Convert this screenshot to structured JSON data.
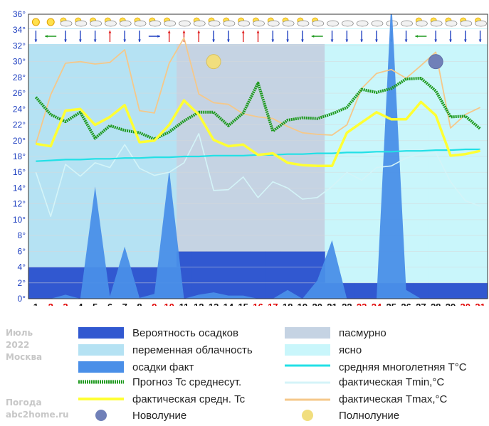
{
  "sidebar": {
    "month": "Июль",
    "year": "2022",
    "city": "Москва",
    "site_title": "Погода",
    "site": "abc2home.ru"
  },
  "legend": {
    "precip_prob": "Вероятность осадков",
    "variable": "переменная облачность",
    "precip_fact": "осадки факт",
    "forecast_avg": "Прогноз Tc среднесут.",
    "fact_avg": "фактическая средн. Tc",
    "new_moon": "Новолуние",
    "overcast": "пасмурно",
    "clear": "ясно",
    "longterm": "средняя многолетняя T°C",
    "tmin": "фактическая Tmin,°C",
    "tmax": "фактическая Tmax,°C",
    "full_moon": "Полнолуние"
  },
  "colors": {
    "precip_prob": "#3158d0",
    "variable": "#b5e2f3",
    "overcast": "#c5d3e3",
    "clear": "#c9f6fb",
    "precip_fact": "#4a8fe8",
    "forecast_avg": "#1f9a1f",
    "fact_avg": "#ffff33",
    "longterm": "#22e0e6",
    "tmin": "#d4f4f8",
    "tmax": "#f5c88a",
    "weekend": "#e00000"
  },
  "chart_data": {
    "type": "line",
    "xlabel": "",
    "ylabel": "",
    "ylim": [
      0,
      36
    ],
    "y_ticks": [
      "0°",
      "2°",
      "4°",
      "6°",
      "8°",
      "10°",
      "12°",
      "14°",
      "16°",
      "18°",
      "20°",
      "22°",
      "24°",
      "26°",
      "28°",
      "30°",
      "32°",
      "34°",
      "36°"
    ],
    "x": [
      "1",
      "2",
      "3",
      "4",
      "5",
      "6",
      "7",
      "8",
      "9",
      "10",
      "11",
      "12",
      "13",
      "14",
      "15",
      "16",
      "17",
      "18",
      "19",
      "20",
      "21",
      "22",
      "23",
      "24",
      "25",
      "26",
      "27",
      "28",
      "29",
      "30",
      "31"
    ],
    "weekend_days": [
      2,
      3,
      9,
      10,
      16,
      17,
      23,
      24,
      30,
      31
    ],
    "sky": [
      "variable",
      "variable",
      "variable",
      "variable",
      "variable",
      "variable",
      "variable",
      "variable",
      "variable",
      "variable",
      "overcast",
      "overcast",
      "overcast",
      "overcast",
      "overcast",
      "overcast",
      "overcast",
      "overcast",
      "overcast",
      "overcast",
      "clear",
      "clear",
      "clear",
      "clear",
      "clear",
      "clear",
      "clear",
      "clear",
      "clear",
      "clear",
      "clear"
    ],
    "weather_icons": [
      "sun",
      "sun",
      "partly-cloudy",
      "partly-cloudy",
      "partly-cloudy",
      "partly-cloudy",
      "partly-cloudy",
      "partly-cloudy",
      "partly-cloudy",
      "partly-cloudy",
      "cloudy",
      "partly-cloudy",
      "partly-cloudy",
      "partly-cloudy",
      "partly-cloudy",
      "partly-cloudy",
      "partly-cloudy",
      "partly-cloudy",
      "partly-cloudy",
      "partly-cloudy",
      "cloudy",
      "cloudy",
      "cloudy",
      "cloudy",
      "cloudy",
      "cloudy",
      "partly-cloudy",
      "partly-cloudy",
      "partly-cloudy",
      "partly-cloudy",
      "partly-cloudy"
    ],
    "wind_dirs": [
      "S",
      "W",
      "S",
      "S",
      "S",
      "N",
      "S",
      "S",
      "E",
      "N",
      "N",
      "N",
      "S",
      "S",
      "N",
      "N",
      "S",
      "S",
      "S",
      "W",
      "S",
      "S",
      "S",
      "S",
      "S",
      "S",
      "W",
      "S",
      "S",
      "S",
      "S"
    ],
    "series": [
      {
        "name": "Вероятность осадков",
        "values": [
          4,
          4,
          4,
          4,
          4,
          4,
          4,
          4,
          4,
          4,
          6,
          6,
          6,
          6,
          6,
          6,
          6,
          6,
          6,
          6,
          2,
          2,
          2,
          2,
          2,
          2,
          2,
          2,
          2,
          2,
          2
        ]
      },
      {
        "name": "осадки факт",
        "values": [
          0,
          0,
          0.5,
          0,
          14.2,
          0.3,
          6.6,
          0.1,
          0.6,
          16.3,
          0,
          0.5,
          0.8,
          0.4,
          0.4,
          0,
          0,
          1.1,
          0,
          2.3,
          7.4,
          0,
          0,
          0,
          45,
          1.1,
          0,
          0,
          0,
          0,
          0
        ]
      },
      {
        "name": "Прогноз Tc среднесут.",
        "values": [
          25.5,
          23.3,
          22.4,
          23.6,
          20.3,
          21.9,
          21.3,
          21.0,
          20.2,
          21.1,
          22.5,
          23.6,
          23.6,
          21.9,
          23.5,
          27.3,
          21.2,
          22.6,
          22.9,
          22.8,
          23.4,
          24.2,
          26.5,
          26.1,
          26.6,
          27.8,
          27.9,
          26.3,
          23.0,
          23.1,
          21.5
        ]
      },
      {
        "name": "фактическая средн. Tc",
        "values": [
          19.6,
          19.3,
          23.8,
          24.0,
          22.0,
          23.0,
          24.5,
          19.8,
          20.0,
          22.0,
          25.1,
          23.3,
          20.1,
          19.3,
          19.5,
          18.2,
          18.4,
          17.2,
          16.9,
          16.8,
          16.8,
          21.0,
          22.3,
          23.6,
          22.7,
          22.7,
          24.9,
          23.2,
          18.1,
          18.3,
          18.7
        ]
      },
      {
        "name": "средняя многолетняя T°C",
        "values": [
          17.4,
          17.5,
          17.6,
          17.6,
          17.7,
          17.7,
          17.8,
          17.8,
          17.9,
          17.9,
          18.0,
          18.0,
          18.1,
          18.1,
          18.1,
          18.2,
          18.2,
          18.3,
          18.3,
          18.4,
          18.4,
          18.5,
          18.5,
          18.6,
          18.6,
          18.7,
          18.7,
          18.8,
          18.8,
          18.9,
          18.9
        ]
      },
      {
        "name": "фактическая Tmin,°C",
        "values": [
          16.0,
          10.4,
          17.0,
          15.5,
          17.2,
          16.6,
          19.5,
          16.5,
          15.6,
          16.0,
          17.2,
          20.9,
          13.7,
          13.8,
          15.4,
          12.8,
          14.8,
          14.0,
          12.6,
          12.8,
          14.2,
          16.0,
          15.0,
          16.6,
          16.8,
          17.8,
          18.3,
          18.5,
          14.8,
          12.4,
          11.7
        ]
      },
      {
        "name": "фактическая Tmax,°C",
        "values": [
          19.6,
          25.8,
          29.8,
          30.0,
          29.7,
          29.9,
          31.5,
          23.8,
          23.5,
          29.8,
          33.0,
          25.9,
          24.8,
          24.6,
          23.4,
          23.0,
          22.8,
          21.8,
          21.0,
          20.8,
          20.7,
          22.0,
          26.6,
          28.5,
          29.0,
          27.9,
          29.5,
          31.2,
          21.6,
          23.3,
          24.2
        ]
      }
    ],
    "moons": [
      {
        "name": "Полнолуние",
        "day": 13,
        "level": 30
      },
      {
        "name": "Новолуние",
        "day": 28,
        "level": 30
      }
    ]
  }
}
